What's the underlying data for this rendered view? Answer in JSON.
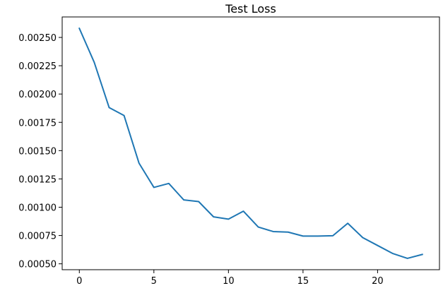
{
  "chart_data": {
    "type": "line",
    "title": "Test Loss",
    "xlabel": "",
    "ylabel": "",
    "xlim": [
      -1.15,
      24.15
    ],
    "ylim": [
      0.000448,
      0.002681
    ],
    "x_ticks": [
      0,
      5,
      10,
      15,
      20
    ],
    "y_ticks": [
      0.0005,
      0.00075,
      0.001,
      0.00125,
      0.0015,
      0.00175,
      0.002,
      0.00225,
      0.0025
    ],
    "y_tick_labels": [
      "0.00050",
      "0.00075",
      "0.00100",
      "0.00125",
      "0.00150",
      "0.00175",
      "0.00200",
      "0.00225",
      "0.00250"
    ],
    "grid": false,
    "series": [
      {
        "color": "#1f77b4",
        "x": [
          0,
          1,
          2,
          3,
          4,
          5,
          6,
          7,
          8,
          9,
          10,
          11,
          12,
          13,
          14,
          15,
          16,
          17,
          18,
          19,
          20,
          21,
          22,
          23
        ],
        "y": [
          0.00258,
          0.00228,
          0.00188,
          0.00181,
          0.00139,
          0.001175,
          0.00121,
          0.001065,
          0.00105,
          0.000915,
          0.000895,
          0.000965,
          0.000825,
          0.000785,
          0.00078,
          0.000745,
          0.000745,
          0.000748,
          0.000858,
          0.000732,
          0.000662,
          0.000592,
          0.000548,
          0.000583
        ]
      }
    ]
  }
}
